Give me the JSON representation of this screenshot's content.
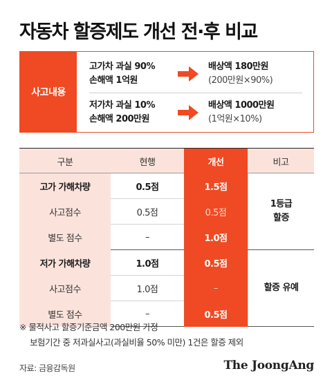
{
  "title": "자동차 할증제도 개선 전·후 비교",
  "accident": {
    "label": "사고내용",
    "cases": [
      {
        "cond1": "고가차 과실 90%",
        "cond2": "손해액 1억원",
        "result1": "배상액 180만원",
        "result2": "(200만원×90%)"
      },
      {
        "cond1": "저가차 과실 10%",
        "cond2": "손해액 200만원",
        "result1": "배상액 1000만원",
        "result2": "(1억원×10%)"
      }
    ],
    "arrow_icon": "right-arrow-icon"
  },
  "table": {
    "headers": [
      "구분",
      "현행",
      "개선",
      "비고"
    ],
    "rows": [
      {
        "label": "고가 가해차량",
        "current": "0.5점",
        "improved": "1.5점"
      },
      {
        "label": "사고점수",
        "current": "0.5점",
        "improved": "0.5점"
      },
      {
        "label": "별도 점수",
        "current": "–",
        "improved": "1.0점"
      },
      {
        "label": "저가 가해차량",
        "current": "1.0점",
        "improved": "0.5점"
      },
      {
        "label": "사고점수",
        "current": "1.0점",
        "improved": "–"
      },
      {
        "label": "별도 점수",
        "current": "–",
        "improved": "0.5점"
      }
    ],
    "remarks": {
      "group1_line1": "1등급",
      "group1_line2": "할증",
      "group2": "할증 유예"
    }
  },
  "notes": {
    "line1": "※ 물적사고 할증기준금액 200만원 가정",
    "line2": "보험기간 중 저과실사고(과실비율 50% 미만) 1건은 할증 제외"
  },
  "source": "자료: 금융감독원",
  "brand": "The JoongAng",
  "colors": {
    "accent": "#ef4a23",
    "pink": "#fbe3dc"
  }
}
